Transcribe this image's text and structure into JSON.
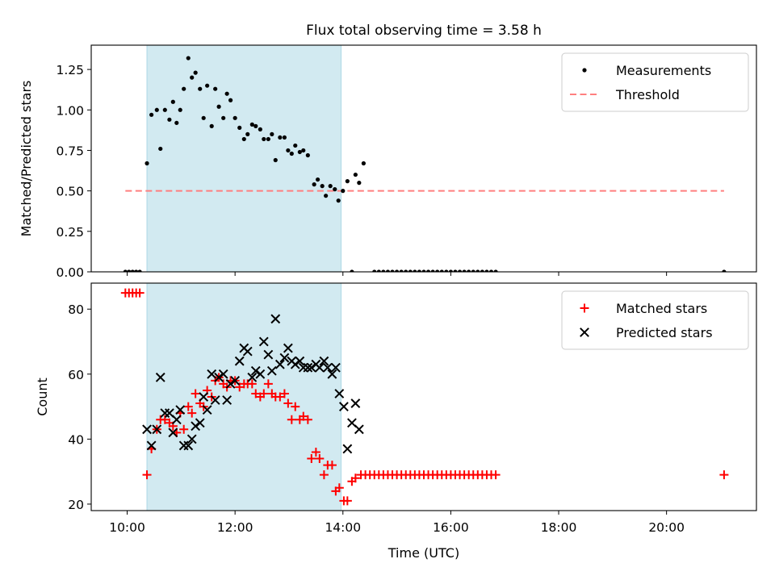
{
  "title": "Flux total observing time = 3.58 h",
  "chart_data": [
    {
      "type": "scatter",
      "ylabel": "Matched/Predicted stars",
      "xlabel": "",
      "xlim": [
        "09:20",
        "21:40"
      ],
      "ylim": [
        0,
        1.4
      ],
      "yticks": [
        "0.00",
        "0.25",
        "0.50",
        "0.75",
        "1.00",
        "1.25"
      ],
      "shaded_interval": [
        "10:22",
        "13:58"
      ],
      "shade_color": "#add8e6",
      "legend_position": "upper right",
      "threshold": {
        "name": "Threshold",
        "value": 0.5,
        "x_range": [
          "09:58",
          "21:04"
        ],
        "color": "#ff7f7f"
      },
      "series": [
        {
          "name": "Measurements",
          "color": "#000000",
          "marker": "dot",
          "points": [
            [
              "09:58",
              0
            ],
            [
              "10:02",
              0
            ],
            [
              "10:06",
              0
            ],
            [
              "10:10",
              0
            ],
            [
              "10:14",
              0
            ],
            [
              "10:22",
              0.67
            ],
            [
              "10:27",
              0.97
            ],
            [
              "10:33",
              1.0
            ],
            [
              "10:37",
              0.76
            ],
            [
              "10:42",
              1.0
            ],
            [
              "10:47",
              0.94
            ],
            [
              "10:51",
              1.05
            ],
            [
              "10:55",
              0.92
            ],
            [
              "10:59",
              1.0
            ],
            [
              "11:03",
              1.13
            ],
            [
              "11:08",
              1.32
            ],
            [
              "11:12",
              1.2
            ],
            [
              "11:16",
              1.23
            ],
            [
              "11:21",
              1.13
            ],
            [
              "11:25",
              0.95
            ],
            [
              "11:29",
              1.15
            ],
            [
              "11:34",
              0.9
            ],
            [
              "11:38",
              1.13
            ],
            [
              "11:42",
              1.02
            ],
            [
              "11:47",
              0.95
            ],
            [
              "11:51",
              1.1
            ],
            [
              "11:55",
              1.06
            ],
            [
              "12:00",
              0.95
            ],
            [
              "12:05",
              0.89
            ],
            [
              "12:10",
              0.82
            ],
            [
              "12:14",
              0.85
            ],
            [
              "12:19",
              0.91
            ],
            [
              "12:23",
              0.9
            ],
            [
              "12:28",
              0.88
            ],
            [
              "12:32",
              0.82
            ],
            [
              "12:37",
              0.82
            ],
            [
              "12:41",
              0.85
            ],
            [
              "12:45",
              0.69
            ],
            [
              "12:50",
              0.83
            ],
            [
              "12:55",
              0.83
            ],
            [
              "12:59",
              0.75
            ],
            [
              "13:03",
              0.73
            ],
            [
              "13:07",
              0.78
            ],
            [
              "13:12",
              0.74
            ],
            [
              "13:16",
              0.75
            ],
            [
              "13:21",
              0.72
            ],
            [
              "13:28",
              0.54
            ],
            [
              "13:32",
              0.57
            ],
            [
              "13:37",
              0.53
            ],
            [
              "13:41",
              0.47
            ],
            [
              "13:46",
              0.53
            ],
            [
              "13:51",
              0.51
            ],
            [
              "13:55",
              0.44
            ],
            [
              "14:00",
              0.5
            ],
            [
              "14:05",
              0.56
            ],
            [
              "14:10",
              0.0
            ],
            [
              "14:14",
              0.6
            ],
            [
              "14:18",
              0.55
            ],
            [
              "14:23",
              0.67
            ],
            [
              "14:35",
              0
            ],
            [
              "14:40",
              0
            ],
            [
              "14:45",
              0
            ],
            [
              "14:50",
              0
            ],
            [
              "14:55",
              0
            ],
            [
              "15:00",
              0
            ],
            [
              "15:05",
              0
            ],
            [
              "15:10",
              0
            ],
            [
              "15:15",
              0
            ],
            [
              "15:20",
              0
            ],
            [
              "15:25",
              0
            ],
            [
              "15:30",
              0
            ],
            [
              "15:35",
              0
            ],
            [
              "15:40",
              0
            ],
            [
              "15:45",
              0
            ],
            [
              "15:50",
              0
            ],
            [
              "15:55",
              0
            ],
            [
              "16:00",
              0
            ],
            [
              "16:05",
              0
            ],
            [
              "16:10",
              0
            ],
            [
              "16:15",
              0
            ],
            [
              "16:20",
              0
            ],
            [
              "16:25",
              0
            ],
            [
              "16:30",
              0
            ],
            [
              "16:35",
              0
            ],
            [
              "16:40",
              0
            ],
            [
              "16:45",
              0
            ],
            [
              "16:50",
              0
            ],
            [
              "21:04",
              0
            ]
          ]
        }
      ]
    },
    {
      "type": "scatter",
      "ylabel": "Count",
      "xlabel": "Time (UTC)",
      "xlim": [
        "09:20",
        "21:40"
      ],
      "ylim": [
        18,
        88
      ],
      "yticks": [
        "20",
        "40",
        "60",
        "80"
      ],
      "xticks": [
        "10:00",
        "12:00",
        "14:00",
        "16:00",
        "18:00",
        "20:00"
      ],
      "shaded_interval": [
        "10:22",
        "13:58"
      ],
      "shade_color": "#add8e6",
      "legend_position": "upper right",
      "series": [
        {
          "name": "Matched stars",
          "color": "#ff0000",
          "marker": "plus",
          "points": [
            [
              "09:58",
              85
            ],
            [
              "10:02",
              85
            ],
            [
              "10:06",
              85
            ],
            [
              "10:10",
              85
            ],
            [
              "10:14",
              85
            ],
            [
              "10:22",
              29
            ],
            [
              "10:27",
              37
            ],
            [
              "10:33",
              43
            ],
            [
              "10:37",
              46
            ],
            [
              "10:42",
              46
            ],
            [
              "10:47",
              45
            ],
            [
              "10:51",
              44
            ],
            [
              "10:55",
              42
            ],
            [
              "10:59",
              48
            ],
            [
              "11:03",
              43
            ],
            [
              "11:08",
              50
            ],
            [
              "11:12",
              48
            ],
            [
              "11:16",
              54
            ],
            [
              "11:21",
              51
            ],
            [
              "11:25",
              50
            ],
            [
              "11:29",
              55
            ],
            [
              "11:34",
              53
            ],
            [
              "11:38",
              58
            ],
            [
              "11:42",
              59
            ],
            [
              "11:47",
              57
            ],
            [
              "11:51",
              56
            ],
            [
              "11:55",
              58
            ],
            [
              "12:00",
              58
            ],
            [
              "12:05",
              56
            ],
            [
              "12:10",
              57
            ],
            [
              "12:14",
              57
            ],
            [
              "12:19",
              57
            ],
            [
              "12:23",
              54
            ],
            [
              "12:28",
              53
            ],
            [
              "12:32",
              54
            ],
            [
              "12:37",
              57
            ],
            [
              "12:41",
              54
            ],
            [
              "12:45",
              53
            ],
            [
              "12:50",
              53
            ],
            [
              "12:55",
              54
            ],
            [
              "12:59",
              51
            ],
            [
              "13:03",
              46
            ],
            [
              "13:07",
              50
            ],
            [
              "13:12",
              46
            ],
            [
              "13:16",
              47
            ],
            [
              "13:21",
              46
            ],
            [
              "13:25",
              34
            ],
            [
              "13:30",
              36
            ],
            [
              "13:34",
              34
            ],
            [
              "13:39",
              29
            ],
            [
              "13:43",
              32
            ],
            [
              "13:48",
              32
            ],
            [
              "13:52",
              24
            ],
            [
              "13:56",
              25
            ],
            [
              "14:01",
              21
            ],
            [
              "14:05",
              21
            ],
            [
              "14:10",
              27
            ],
            [
              "14:14",
              28
            ],
            [
              "14:20",
              29
            ],
            [
              "14:25",
              29
            ],
            [
              "14:30",
              29
            ],
            [
              "14:35",
              29
            ],
            [
              "14:40",
              29
            ],
            [
              "14:45",
              29
            ],
            [
              "14:50",
              29
            ],
            [
              "14:55",
              29
            ],
            [
              "15:00",
              29
            ],
            [
              "15:05",
              29
            ],
            [
              "15:10",
              29
            ],
            [
              "15:15",
              29
            ],
            [
              "15:20",
              29
            ],
            [
              "15:25",
              29
            ],
            [
              "15:30",
              29
            ],
            [
              "15:35",
              29
            ],
            [
              "15:40",
              29
            ],
            [
              "15:45",
              29
            ],
            [
              "15:50",
              29
            ],
            [
              "15:55",
              29
            ],
            [
              "16:00",
              29
            ],
            [
              "16:05",
              29
            ],
            [
              "16:10",
              29
            ],
            [
              "16:15",
              29
            ],
            [
              "16:20",
              29
            ],
            [
              "16:25",
              29
            ],
            [
              "16:30",
              29
            ],
            [
              "16:35",
              29
            ],
            [
              "16:40",
              29
            ],
            [
              "16:45",
              29
            ],
            [
              "16:50",
              29
            ],
            [
              "21:04",
              29
            ]
          ]
        },
        {
          "name": "Predicted stars",
          "color": "#000000",
          "marker": "x",
          "points": [
            [
              "10:22",
              43
            ],
            [
              "10:27",
              38
            ],
            [
              "10:33",
              43
            ],
            [
              "10:37",
              59
            ],
            [
              "10:42",
              48
            ],
            [
              "10:47",
              48
            ],
            [
              "10:51",
              42
            ],
            [
              "10:55",
              46
            ],
            [
              "10:59",
              49
            ],
            [
              "11:03",
              38
            ],
            [
              "11:08",
              38
            ],
            [
              "11:12",
              40
            ],
            [
              "11:16",
              44
            ],
            [
              "11:21",
              45
            ],
            [
              "11:25",
              53
            ],
            [
              "11:29",
              49
            ],
            [
              "11:34",
              60
            ],
            [
              "11:38",
              52
            ],
            [
              "11:42",
              59
            ],
            [
              "11:47",
              60
            ],
            [
              "11:51",
              52
            ],
            [
              "11:55",
              57
            ],
            [
              "12:00",
              58
            ],
            [
              "12:05",
              64
            ],
            [
              "12:10",
              68
            ],
            [
              "12:14",
              67
            ],
            [
              "12:19",
              59
            ],
            [
              "12:23",
              61
            ],
            [
              "12:28",
              60
            ],
            [
              "12:32",
              70
            ],
            [
              "12:37",
              66
            ],
            [
              "12:41",
              61
            ],
            [
              "12:45",
              77
            ],
            [
              "12:50",
              63
            ],
            [
              "12:55",
              65
            ],
            [
              "12:59",
              68
            ],
            [
              "13:03",
              64
            ],
            [
              "13:07",
              63
            ],
            [
              "13:12",
              64
            ],
            [
              "13:16",
              62
            ],
            [
              "13:21",
              62
            ],
            [
              "13:25",
              62
            ],
            [
              "13:30",
              63
            ],
            [
              "13:34",
              62
            ],
            [
              "13:39",
              64
            ],
            [
              "13:43",
              62
            ],
            [
              "13:48",
              60
            ],
            [
              "13:52",
              62
            ],
            [
              "13:56",
              54
            ],
            [
              "14:01",
              50
            ],
            [
              "14:05",
              37
            ],
            [
              "14:10",
              45
            ],
            [
              "14:14",
              51
            ],
            [
              "14:18",
              43
            ]
          ]
        }
      ]
    }
  ]
}
